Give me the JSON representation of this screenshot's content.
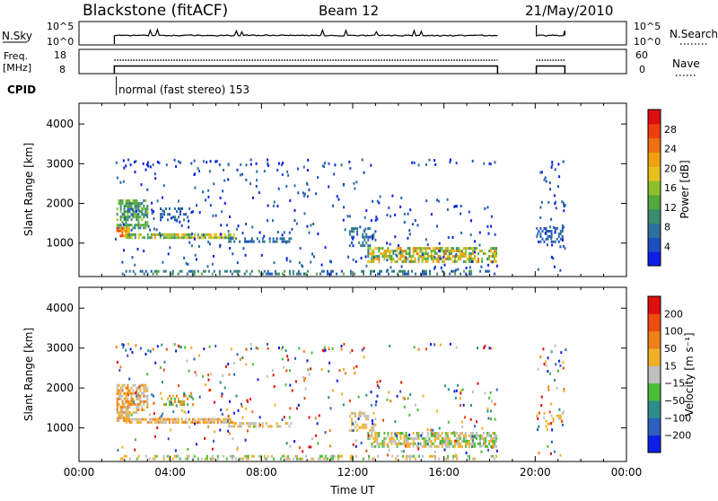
{
  "header": {
    "station": "Blackstone (fitACF)",
    "beam": "Beam 12",
    "date": "21/May/2010"
  },
  "top_panels": {
    "nsky_label": "N.Sky",
    "nsearch_label": "N.Search",
    "freq_label_line1": "Freq.",
    "freq_label_line2": "[MHz]",
    "nave_label": "Nave",
    "cpid_label": "CPID",
    "cpid_value": "normal (fast stereo) 153",
    "nsky_ticks": [
      "10^5",
      "10^0"
    ],
    "nsearch_ticks": [
      "10^5",
      "10^0"
    ],
    "freq_ticks": [
      "18",
      "8"
    ],
    "nave_ticks": [
      "60",
      "0"
    ]
  },
  "chart_data": [
    {
      "type": "heatmap",
      "panel": "power",
      "xlabel": "",
      "ylabel": "Slant Range [km]",
      "xlim": [
        0,
        24
      ],
      "ylim": [
        180,
        4500
      ],
      "yticks": [
        "1000",
        "2000",
        "3000",
        "4000"
      ],
      "colorbar_label": "Power [dB]",
      "colorbar_ticks": [
        "4",
        "8",
        "12",
        "16",
        "20",
        "24",
        "28"
      ],
      "colorbar_colors": [
        "#0b1fe6",
        "#1e4fc0",
        "#2e6f9e",
        "#3a8c6e",
        "#53a83c",
        "#8cc02a",
        "#e8c11e",
        "#f0a010",
        "#f07010",
        "#ee3d0f",
        "#dd0f0f"
      ],
      "data_windows_hours": [
        [
          1.55,
          18.35
        ],
        [
          20.05,
          21.3
        ]
      ]
    },
    {
      "type": "heatmap",
      "panel": "velocity",
      "xlabel": "Time UT",
      "ylabel": "Slant Range [km]",
      "xlim": [
        0,
        24
      ],
      "ylim": [
        180,
        4500
      ],
      "xticks": [
        "00:00",
        "04:00",
        "08:00",
        "12:00",
        "16:00",
        "20:00",
        "00:00"
      ],
      "yticks": [
        "1000",
        "2000",
        "3000",
        "4000"
      ],
      "colorbar_label": "Velocity [m s⁻¹]",
      "colorbar_ticks": [
        "200",
        "100",
        "50",
        "15",
        "−15",
        "−50",
        "−100",
        "−200"
      ],
      "colorbar_colors": [
        "#0b1fe6",
        "#2e5fbf",
        "#2f8c8c",
        "#4dbb3a",
        "#bfbfbf",
        "#f0b028",
        "#f08018",
        "#ee4c10",
        "#e00f0f"
      ],
      "data_windows_hours": [
        [
          1.55,
          18.35
        ],
        [
          20.05,
          21.3
        ]
      ]
    }
  ]
}
